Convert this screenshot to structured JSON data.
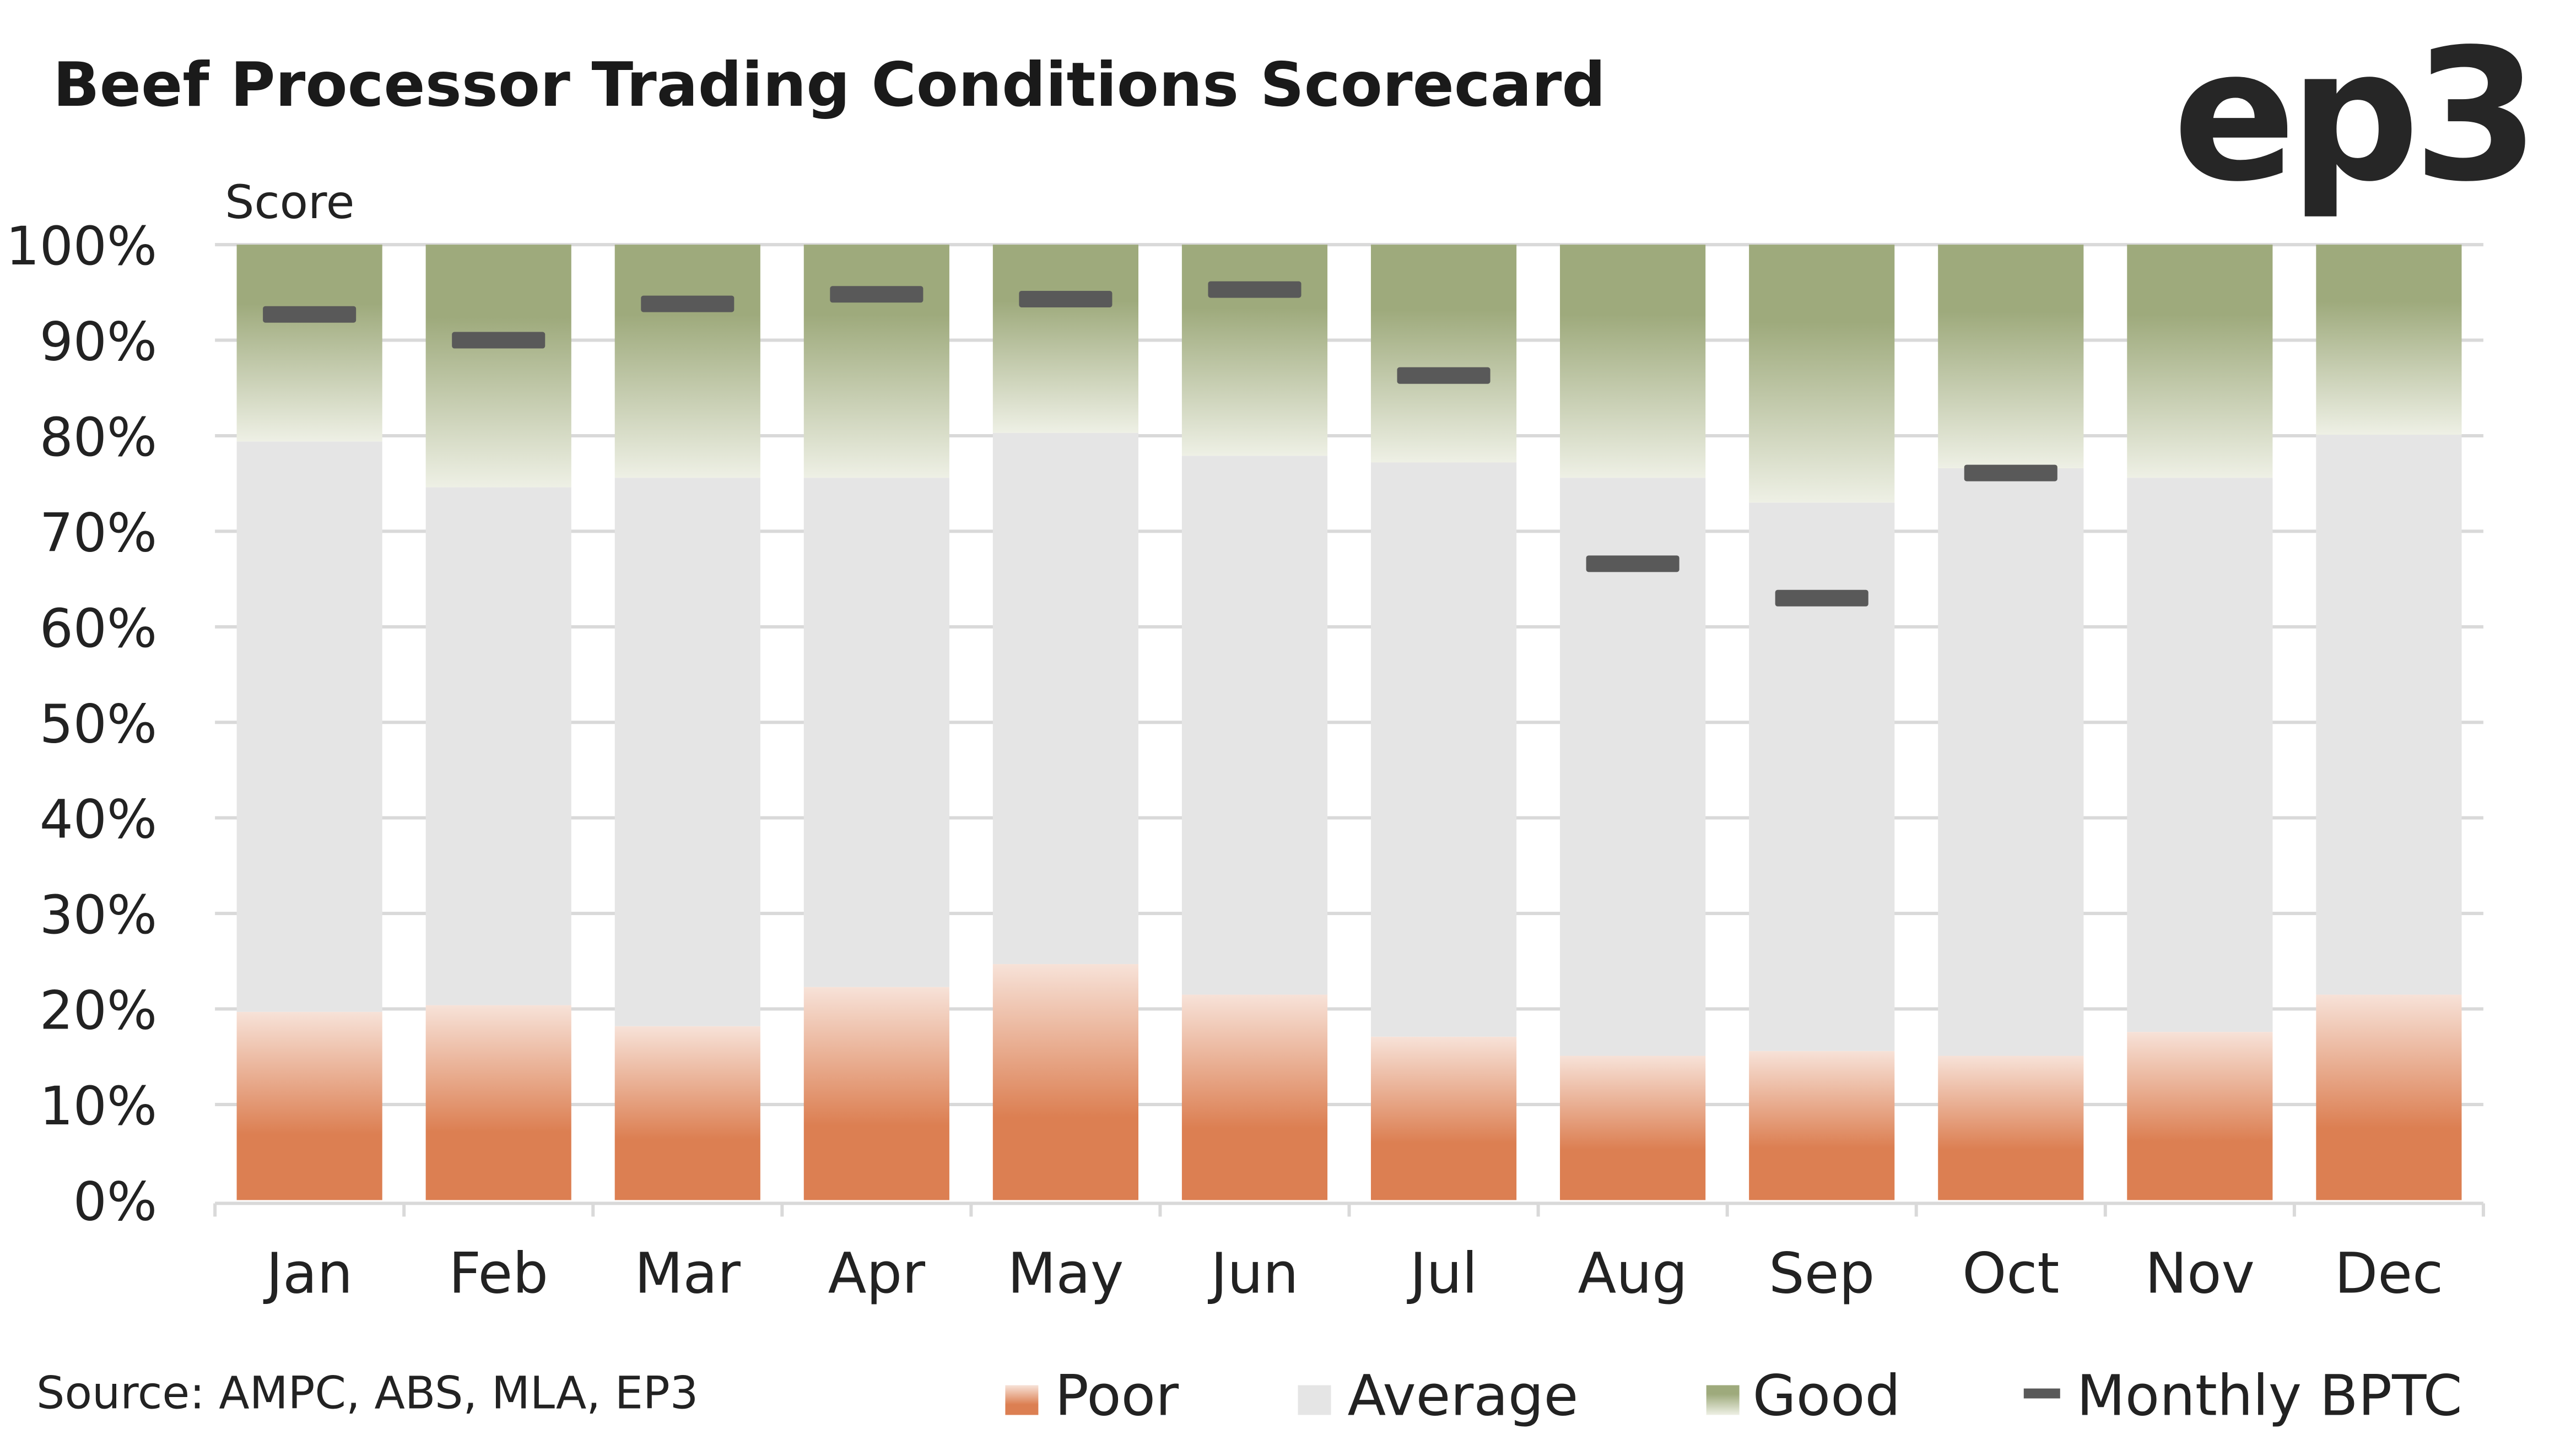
{
  "chart_data": {
    "type": "bar",
    "stacked": true,
    "title": "Beef Processor Trading Conditions Scorecard",
    "logo_text": "ep3",
    "ylabel": "Score",
    "ylim": [
      0,
      100
    ],
    "yticks": [
      "0%",
      "10%",
      "20%",
      "30%",
      "40%",
      "50%",
      "60%",
      "70%",
      "80%",
      "90%",
      "100%"
    ],
    "categories": [
      "Jan",
      "Feb",
      "Mar",
      "Apr",
      "May",
      "Jun",
      "Jul",
      "Aug",
      "Sep",
      "Oct",
      "Nov",
      "Dec"
    ],
    "series": [
      {
        "name": "Poor",
        "values": [
          19.7,
          20.4,
          18.2,
          22.3,
          24.7,
          21.5,
          17.1,
          15.1,
          15.6,
          15.1,
          17.6,
          21.5
        ],
        "color": "#DC7F52"
      },
      {
        "name": "Average",
        "values": [
          59.7,
          54.2,
          57.4,
          53.3,
          55.6,
          56.4,
          60.1,
          60.5,
          57.4,
          61.5,
          58.0,
          58.6
        ],
        "color": "#E5E5E5"
      },
      {
        "name": "Good",
        "values": [
          20.6,
          25.4,
          24.4,
          24.4,
          19.7,
          22.1,
          22.8,
          24.4,
          27.0,
          23.4,
          24.4,
          19.9
        ],
        "color": "#9EAA7C"
      }
    ],
    "markers": {
      "name": "Monthly BPTC",
      "values": [
        92.7,
        90.0,
        93.8,
        94.8,
        94.3,
        95.3,
        86.3,
        66.6,
        63.0,
        76.1,
        null,
        null
      ],
      "color": "#595959"
    },
    "legend": [
      "Poor",
      "Average",
      "Good",
      "Monthly BPTC"
    ],
    "legend_position": "bottom-right",
    "source": "Source: AMPC, ABS, MLA, EP3",
    "grid": true
  }
}
